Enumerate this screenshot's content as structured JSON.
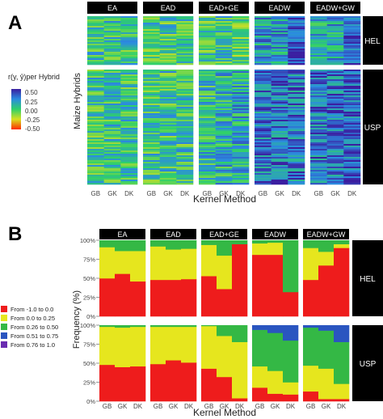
{
  "panel_a": {
    "letter": "A",
    "legend": {
      "title": "r(y, ŷ)per Hybrid",
      "ticks": [
        "0.50",
        "0.25",
        "0.00",
        "-0.25",
        "-0.50"
      ]
    },
    "ylabel": "Maize Hybrids",
    "xlabel": "Kernel Method",
    "facets": [
      "EA",
      "EAD",
      "EAD+GE",
      "EADW",
      "EADW+GW"
    ],
    "rows": [
      "HEL",
      "USP"
    ],
    "x_ticks": [
      "GB",
      "GK",
      "DK"
    ],
    "colors": {
      "low": "#ff2a00",
      "mid": "#2fd06a",
      "high": "#3b1ea0",
      "row_label_bg": "#000000",
      "facet_bg": "#000000"
    }
  },
  "panel_b": {
    "letter": "B",
    "ylabel": "Frequency (%)",
    "xlabel": "Kernel Method",
    "y_ticks": [
      "0%",
      "25%",
      "50%",
      "75%",
      "100%"
    ],
    "x_ticks": [
      "GB",
      "GK",
      "DK"
    ],
    "legend": [
      {
        "label": "From -1.0 to 0.0",
        "color": "#ee1c1c"
      },
      {
        "label": "From 0.0 to 0.25",
        "color": "#e6e61e"
      },
      {
        "label": "From 0.26 to 0.50",
        "color": "#34b845"
      },
      {
        "label": "From 0.51 to 0.75",
        "color": "#2a55c0"
      },
      {
        "label": "From 0.76 to 1.0",
        "color": "#6a2bb0"
      }
    ]
  },
  "chart_data": [
    {
      "type": "heatmap",
      "panel": "A",
      "xlabel": "Kernel Method",
      "ylabel": "Maize Hybrids",
      "facets": [
        "EA",
        "EAD",
        "EAD+GE",
        "EADW",
        "EADW+GW"
      ],
      "rows": [
        "HEL",
        "USP"
      ],
      "categories": [
        "GB",
        "GK",
        "DK"
      ],
      "color_range": [
        -0.5,
        0.5
      ],
      "mean_r": {
        "HEL": {
          "EA": [
            0.05,
            0.05,
            0.05
          ],
          "EAD": [
            0.03,
            0.03,
            0.03
          ],
          "EAD+GE": [
            0.02,
            0.05,
            -0.05
          ],
          "EADW": [
            0.2,
            0.2,
            0.4
          ],
          "EADW+GW": [
            0.15,
            0.15,
            0.35
          ]
        },
        "USP": {
          "EA": [
            0.05,
            0.05,
            0.05
          ],
          "EAD": [
            0.05,
            0.05,
            0.05
          ],
          "EAD+GE": [
            0.08,
            0.12,
            0.15
          ],
          "EADW": [
            0.3,
            0.3,
            0.3
          ],
          "EADW+GW": [
            0.3,
            0.3,
            0.35
          ]
        }
      }
    },
    {
      "type": "bar",
      "stacked": true,
      "panel": "B",
      "xlabel": "Kernel Method",
      "ylabel": "Frequency (%)",
      "ylim": [
        0,
        100
      ],
      "facets": [
        "EA",
        "EAD",
        "EAD+GE",
        "EADW",
        "EADW+GW"
      ],
      "rows": [
        "HEL",
        "USP"
      ],
      "categories": [
        "GB",
        "GK",
        "DK"
      ],
      "bins": [
        "From -1.0 to 0.0",
        "From 0.0 to 0.25",
        "From 0.26 to 0.50",
        "From 0.51 to 0.75",
        "From 0.76 to 1.0"
      ],
      "values": {
        "HEL": {
          "EA": [
            [
              50,
              41,
              9,
              0,
              0
            ],
            [
              56,
              30,
              14,
              0,
              0
            ],
            [
              46,
              40,
              14,
              0,
              0
            ]
          ],
          "EAD": [
            [
              48,
              44,
              8,
              0,
              0
            ],
            [
              48,
              40,
              12,
              0,
              0
            ],
            [
              49,
              40,
              11,
              0,
              0
            ]
          ],
          "EAD+GE": [
            [
              53,
              41,
              6,
              0,
              0
            ],
            [
              36,
              44,
              20,
              0,
              0
            ],
            [
              95,
              0,
              5,
              0,
              0
            ]
          ],
          "EADW": [
            [
              81,
              15,
              4,
              0,
              0
            ],
            [
              81,
              16,
              3,
              0,
              0
            ],
            [
              32,
              0,
              68,
              0,
              0
            ]
          ],
          "EADW+GW": [
            [
              48,
              42,
              10,
              0,
              0
            ],
            [
              67,
              18,
              15,
              0,
              0
            ],
            [
              90,
              5,
              5,
              0,
              0
            ]
          ]
        },
        "USP": {
          "EA": [
            [
              48,
              50,
              2,
              0,
              0
            ],
            [
              45,
              52,
              3,
              0,
              0
            ],
            [
              46,
              52,
              2,
              0,
              0
            ]
          ],
          "EAD": [
            [
              49,
              49,
              2,
              0,
              0
            ],
            [
              54,
              44,
              2,
              0,
              0
            ],
            [
              51,
              47,
              2,
              0,
              0
            ]
          ],
          "EAD+GE": [
            [
              43,
              56,
              1,
              0,
              0
            ],
            [
              32,
              54,
              14,
              0,
              0
            ],
            [
              4,
              74,
              22,
              0,
              0
            ]
          ],
          "EADW": [
            [
              18,
              28,
              48,
              6,
              0
            ],
            [
              10,
              30,
              50,
              10,
              0
            ],
            [
              9,
              16,
              55,
              20,
              0
            ]
          ],
          "EADW+GW": [
            [
              13,
              34,
              50,
              3,
              0
            ],
            [
              3,
              40,
              50,
              7,
              0
            ],
            [
              3,
              20,
              55,
              22,
              0
            ]
          ]
        }
      }
    }
  ]
}
